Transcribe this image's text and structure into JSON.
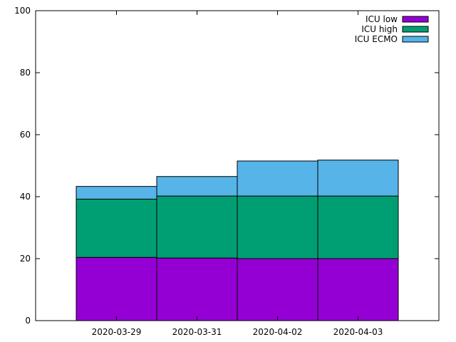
{
  "chart_data": {
    "type": "bar",
    "stacked": true,
    "title": "",
    "xlabel": "",
    "ylabel": "",
    "ylim": [
      0,
      100
    ],
    "yticks": [
      0,
      20,
      40,
      60,
      80,
      100
    ],
    "grid": false,
    "legend_position": "top-right",
    "categories": [
      "2020-03-29",
      "2020-03-31",
      "2020-04-02",
      "2020-04-03"
    ],
    "series": [
      {
        "name": "ICU low",
        "color": "#9400d3",
        "values": [
          20.4,
          20.2,
          20.0,
          20.0
        ]
      },
      {
        "name": "ICU high",
        "color": "#009e73",
        "values": [
          18.8,
          20.0,
          20.2,
          20.2
        ]
      },
      {
        "name": "ICU ECMO",
        "color": "#56b4e9",
        "values": [
          4.1,
          6.3,
          11.3,
          11.6
        ]
      }
    ]
  }
}
